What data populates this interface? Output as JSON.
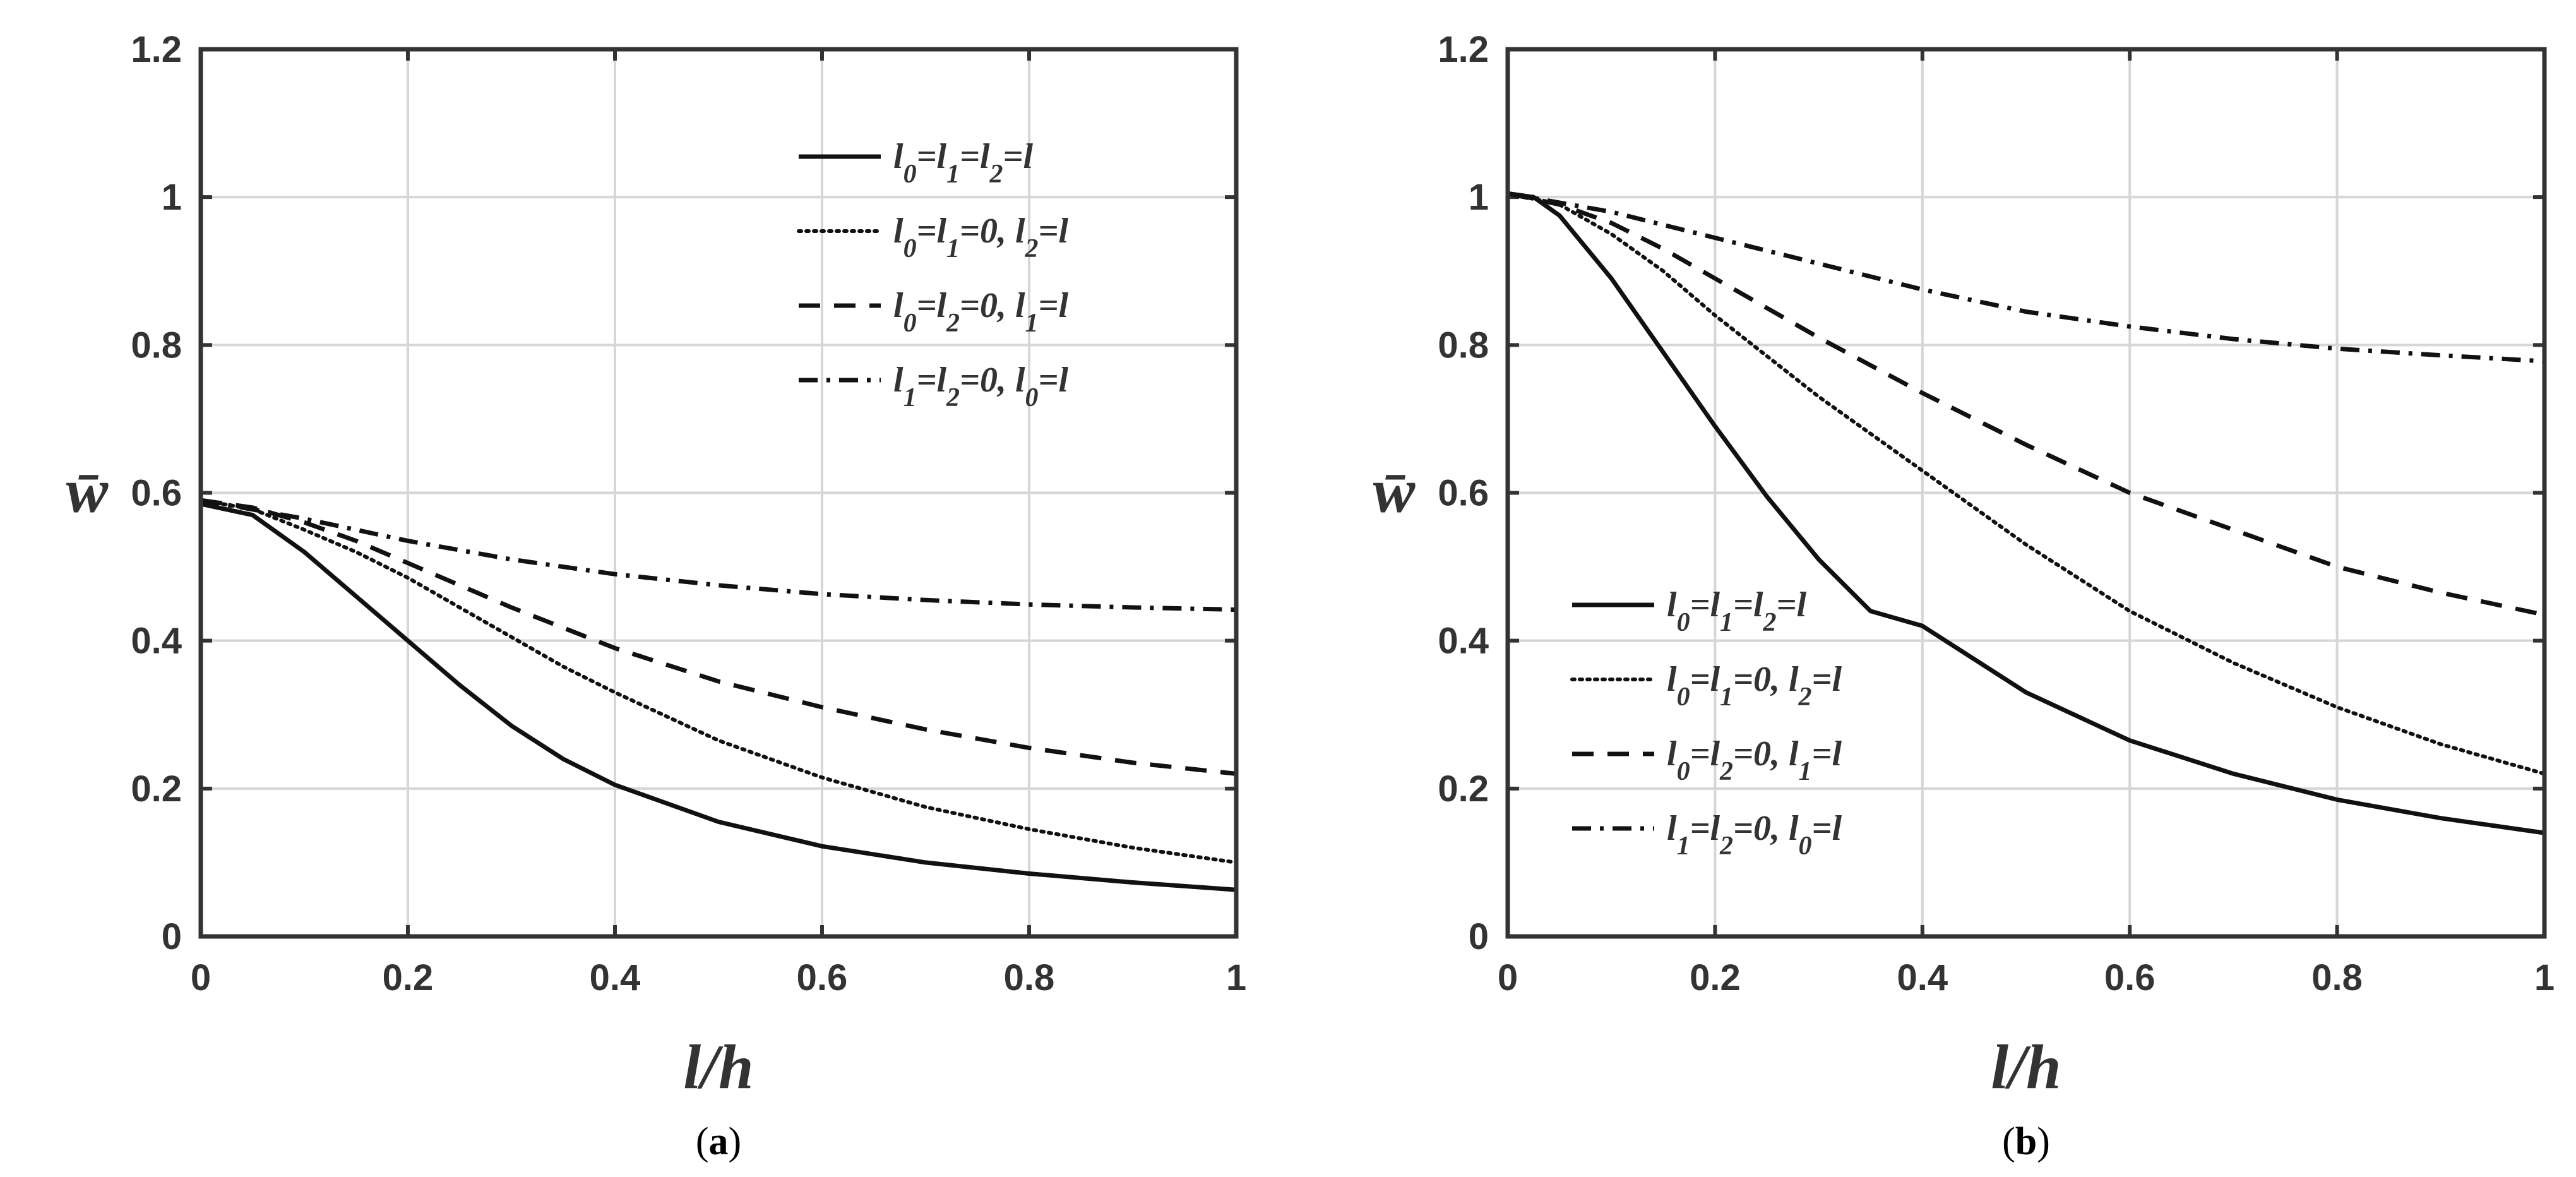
{
  "chart_data": [
    {
      "type": "line",
      "panel": "(a)",
      "caption_letter": "a",
      "xlabel": "l/h",
      "ylabel": "w̄",
      "xlim": [
        0,
        1
      ],
      "ylim": [
        0,
        1.2
      ],
      "xticks": [
        "0",
        "0.2",
        "0.4",
        "0.6",
        "0.8",
        "1"
      ],
      "yticks": [
        "0",
        "0.2",
        "0.4",
        "0.6",
        "0.8",
        "1",
        "1.2"
      ],
      "grid": true,
      "legend_position": "top-right",
      "series": [
        {
          "name": "l0=l1=l2=l",
          "style": "solid",
          "x": [
            0,
            0.05,
            0.1,
            0.15,
            0.2,
            0.25,
            0.3,
            0.35,
            0.4,
            0.5,
            0.6,
            0.7,
            0.8,
            0.9,
            1.0
          ],
          "y": [
            0.585,
            0.57,
            0.52,
            0.46,
            0.4,
            0.34,
            0.285,
            0.24,
            0.205,
            0.155,
            0.122,
            0.1,
            0.085,
            0.073,
            0.063
          ]
        },
        {
          "name": "l0=l1=0, l2=l",
          "style": "dotted",
          "x": [
            0,
            0.05,
            0.1,
            0.15,
            0.2,
            0.25,
            0.3,
            0.35,
            0.4,
            0.5,
            0.6,
            0.7,
            0.8,
            0.9,
            1.0
          ],
          "y": [
            0.59,
            0.578,
            0.55,
            0.52,
            0.485,
            0.445,
            0.405,
            0.365,
            0.33,
            0.265,
            0.215,
            0.175,
            0.145,
            0.12,
            0.1
          ]
        },
        {
          "name": "l0=l2=0, l1=l",
          "style": "dashed",
          "x": [
            0,
            0.05,
            0.1,
            0.15,
            0.2,
            0.3,
            0.4,
            0.5,
            0.6,
            0.7,
            0.8,
            0.9,
            1.0
          ],
          "y": [
            0.59,
            0.58,
            0.56,
            0.535,
            0.505,
            0.445,
            0.39,
            0.345,
            0.31,
            0.28,
            0.255,
            0.235,
            0.22
          ]
        },
        {
          "name": "l1=l2=0, l0=l",
          "style": "dashdot",
          "x": [
            0,
            0.1,
            0.2,
            0.3,
            0.4,
            0.5,
            0.6,
            0.7,
            0.8,
            0.9,
            1.0
          ],
          "y": [
            0.59,
            0.565,
            0.535,
            0.51,
            0.49,
            0.475,
            0.463,
            0.455,
            0.449,
            0.445,
            0.442
          ]
        }
      ]
    },
    {
      "type": "line",
      "panel": "(b)",
      "caption_letter": "b",
      "xlabel": "l/h",
      "ylabel": "w̄",
      "xlim": [
        0,
        1
      ],
      "ylim": [
        0,
        1.2
      ],
      "xticks": [
        "0",
        "0.2",
        "0.4",
        "0.6",
        "0.8",
        "1"
      ],
      "yticks": [
        "0",
        "0.2",
        "0.4",
        "0.6",
        "0.8",
        "1",
        "1.2"
      ],
      "grid": true,
      "legend_position": "bottom-left",
      "series": [
        {
          "name": "l0=l1=l2=l",
          "style": "solid",
          "x": [
            0,
            0.025,
            0.05,
            0.1,
            0.15,
            0.2,
            0.25,
            0.3,
            0.35,
            0.4,
            0.5,
            0.6,
            0.7,
            0.8,
            0.9,
            1.0
          ],
          "y": [
            1.005,
            1.0,
            0.975,
            0.89,
            0.79,
            0.69,
            0.595,
            0.51,
            0.44,
            0.42,
            0.33,
            0.265,
            0.22,
            0.185,
            0.16,
            0.14
          ]
        },
        {
          "name": "l0=l1=0, l2=l",
          "style": "dotted",
          "x": [
            0,
            0.05,
            0.1,
            0.15,
            0.2,
            0.3,
            0.4,
            0.5,
            0.6,
            0.7,
            0.8,
            0.9,
            1.0
          ],
          "y": [
            1.005,
            0.99,
            0.95,
            0.9,
            0.84,
            0.73,
            0.63,
            0.53,
            0.44,
            0.37,
            0.31,
            0.26,
            0.22
          ]
        },
        {
          "name": "l0=l2=0, l1=l",
          "style": "dashed",
          "x": [
            0,
            0.05,
            0.1,
            0.15,
            0.2,
            0.3,
            0.4,
            0.5,
            0.6,
            0.7,
            0.8,
            0.9,
            1.0
          ],
          "y": [
            1.005,
            0.99,
            0.965,
            0.93,
            0.89,
            0.81,
            0.735,
            0.665,
            0.6,
            0.55,
            0.5,
            0.465,
            0.435
          ]
        },
        {
          "name": "l1=l2=0, l0=l",
          "style": "dashdot",
          "x": [
            0,
            0.1,
            0.2,
            0.3,
            0.4,
            0.5,
            0.6,
            0.7,
            0.8,
            0.9,
            1.0
          ],
          "y": [
            1.005,
            0.98,
            0.945,
            0.91,
            0.875,
            0.845,
            0.825,
            0.808,
            0.795,
            0.786,
            0.778
          ]
        }
      ]
    }
  ]
}
